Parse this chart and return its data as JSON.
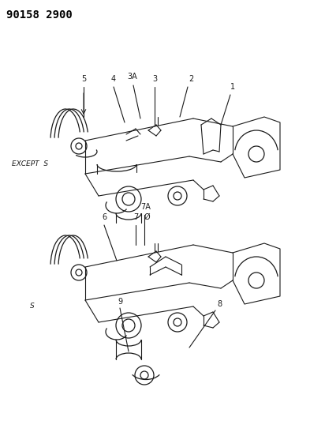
{
  "title": "90158 2900",
  "background_color": "#ffffff",
  "text_color": "#000000",
  "label1_top": "EXCEPT  S",
  "label2_bottom": "S",
  "top_labels": [
    "5",
    "4",
    "3A",
    "3",
    "2",
    "1"
  ],
  "bottom_labels": [
    "6",
    "7A",
    "7",
    "9",
    "8"
  ],
  "fig_width": 3.93,
  "fig_height": 5.33
}
